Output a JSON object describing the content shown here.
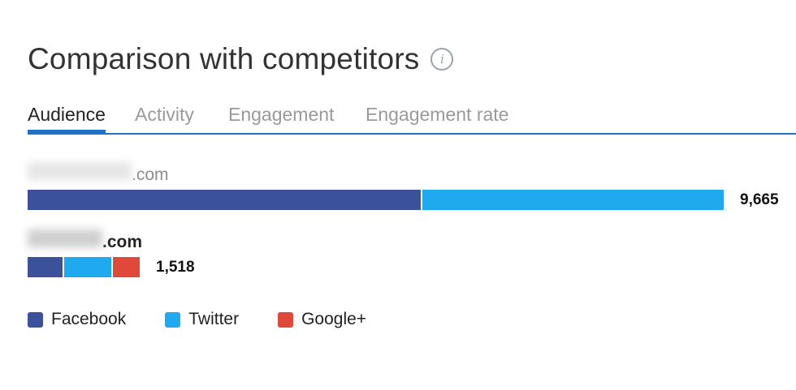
{
  "header": {
    "title": "Comparison with competitors",
    "info_glyph": "i",
    "info_icon": "info-icon"
  },
  "tabs": [
    {
      "label": "Audience",
      "active": true
    },
    {
      "label": "Activity",
      "active": false
    },
    {
      "label": "Engagement",
      "active": false
    },
    {
      "label": "Engagement rate",
      "active": false
    }
  ],
  "colors": {
    "Facebook": "#3b529a",
    "Twitter": "#1fa9ee",
    "Google+": "#e0483a",
    "accent": "#1d72c9"
  },
  "chart_data": {
    "type": "bar",
    "orientation": "horizontal",
    "stacked": true,
    "categories": [
      ".com",
      ".com"
    ],
    "series": [
      {
        "name": "Facebook",
        "values": [
          5470,
          490
        ]
      },
      {
        "name": "Twitter",
        "values": [
          4195,
          650
        ]
      },
      {
        "name": "Google+",
        "values": [
          0,
          378
        ]
      }
    ],
    "totals": [
      "9,665",
      "1,518"
    ],
    "legend_position": "bottom",
    "grid": false
  }
}
